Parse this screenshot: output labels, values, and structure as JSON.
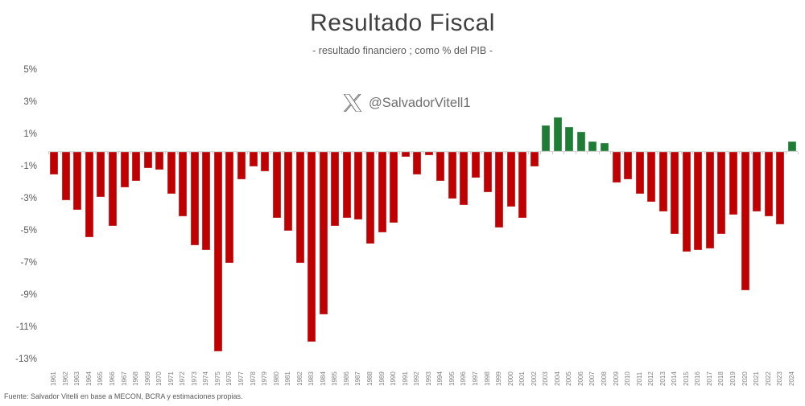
{
  "header": {
    "title": "Resultado Fiscal",
    "subtitle": "- resultado financiero ; como % del PIB -",
    "handle": "@SalvadorVitell1"
  },
  "footer": {
    "source": "Fuente: Salvador Vitelli en base a MECON, BCRA y estimaciones propias."
  },
  "colors": {
    "deficit_bar": "#C00000",
    "surplus_bar": "#1E7C34",
    "axis_line": "#D6D6D6",
    "title_text": "#404040",
    "label_text": "#7F7F7F"
  },
  "chart_data": {
    "type": "bar",
    "title": "Resultado Fiscal",
    "subtitle": "- resultado financiero ; como % del PIB -",
    "xlabel": "",
    "ylabel": "",
    "ylim": [
      -13,
      5
    ],
    "ytick_step": 2,
    "ytick_labels": [
      "5%",
      "3%",
      "1%",
      "-1%",
      "-3%",
      "-5%",
      "-7%",
      "-9%",
      "-11%",
      "-13%"
    ],
    "grid": false,
    "legend_position": "none",
    "unit": "% del PIB",
    "categories": [
      "1961",
      "1962",
      "1963",
      "1964",
      "1965",
      "1966",
      "1967",
      "1968",
      "1969",
      "1970",
      "1971",
      "1972",
      "1973",
      "1974",
      "1975",
      "1976",
      "1977",
      "1978",
      "1979",
      "1980",
      "1981",
      "1982",
      "1983",
      "1984",
      "1985",
      "1986",
      "1987",
      "1988",
      "1989",
      "1990",
      "1991",
      "1992",
      "1993",
      "1994",
      "1995",
      "1996",
      "1997",
      "1998",
      "1999",
      "2000",
      "2001",
      "2002",
      "2003",
      "2004",
      "2005",
      "2006",
      "2007",
      "2008",
      "2009",
      "2010",
      "2011",
      "2012",
      "2013",
      "2014",
      "2015",
      "2016",
      "2017",
      "2018",
      "2019",
      "2020",
      "2021",
      "2022",
      "2023",
      "2024"
    ],
    "values": [
      -1.4,
      -3.0,
      -3.6,
      -5.3,
      -2.8,
      -4.6,
      -2.2,
      -1.8,
      -1.0,
      -1.1,
      -2.6,
      -4.0,
      -5.8,
      -6.1,
      -12.4,
      -6.9,
      -1.7,
      -0.9,
      -1.2,
      -4.1,
      -4.9,
      -6.9,
      -11.8,
      -10.1,
      -4.6,
      -4.1,
      -4.2,
      -5.7,
      -5.0,
      -4.4,
      -0.3,
      -1.4,
      -0.2,
      -1.8,
      -2.9,
      -3.3,
      -1.6,
      -2.5,
      -4.7,
      -3.4,
      -4.1,
      -0.9,
      1.6,
      2.1,
      1.5,
      1.2,
      0.6,
      0.5,
      -1.9,
      -1.7,
      -2.6,
      -3.1,
      -3.7,
      -5.1,
      -6.2,
      -6.1,
      -6.0,
      -5.1,
      -3.9,
      -8.6,
      -3.7,
      -4.0,
      -4.5,
      0.6
    ],
    "positive_color": "#1E7C34",
    "negative_color": "#C00000"
  }
}
